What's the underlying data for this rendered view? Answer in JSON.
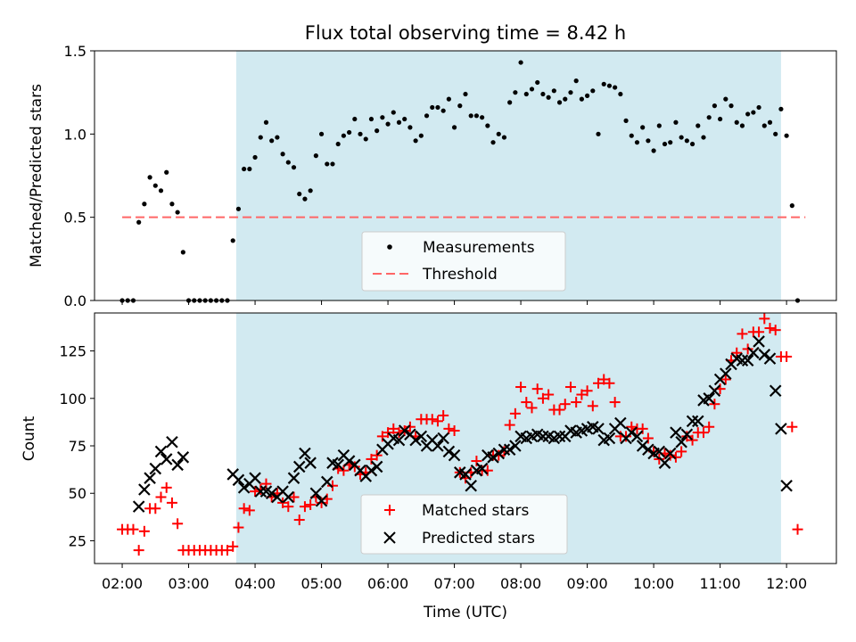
{
  "colors": {
    "shade": "#add8e6",
    "threshold": "#ff6666",
    "matched": "#ff0000",
    "predicted": "#000000",
    "measurements": "#000000"
  },
  "chart_data": [
    {
      "type": "scatter",
      "title": "Flux total observing time = 8.42 h",
      "xlabel": "",
      "ylabel": "Matched/Predicted stars",
      "xlim": [
        "01:35",
        "12:45"
      ],
      "ylim": [
        0,
        1.5
      ],
      "yticks": [
        "0.0",
        "0.5",
        "1.0",
        "1.5"
      ],
      "grid": false,
      "legend_position": "lower-center",
      "shaded_region": {
        "start": "03:43",
        "end": "11:55"
      },
      "threshold": {
        "name": "Threshold",
        "value": 0.5,
        "x_start": "02:00",
        "x_end": "12:17",
        "style": "dashed"
      },
      "series": [
        {
          "name": "Measurements",
          "marker": "dot",
          "x": [
            "02:00",
            "02:05",
            "02:10",
            "02:15",
            "02:20",
            "02:25",
            "02:30",
            "02:35",
            "02:40",
            "02:45",
            "02:50",
            "02:55",
            "03:00",
            "03:05",
            "03:10",
            "03:15",
            "03:20",
            "03:25",
            "03:30",
            "03:35",
            "03:40",
            "03:45",
            "03:50",
            "03:55",
            "04:00",
            "04:05",
            "04:10",
            "04:15",
            "04:20",
            "04:25",
            "04:30",
            "04:35",
            "04:40",
            "04:45",
            "04:50",
            "04:55",
            "05:00",
            "05:05",
            "05:10",
            "05:15",
            "05:20",
            "05:25",
            "05:30",
            "05:35",
            "05:40",
            "05:45",
            "05:50",
            "05:55",
            "06:00",
            "06:05",
            "06:10",
            "06:15",
            "06:20",
            "06:25",
            "06:30",
            "06:35",
            "06:40",
            "06:45",
            "06:50",
            "06:55",
            "07:00",
            "07:05",
            "07:10",
            "07:15",
            "07:20",
            "07:25",
            "07:30",
            "07:35",
            "07:40",
            "07:45",
            "07:50",
            "07:55",
            "08:00",
            "08:05",
            "08:10",
            "08:15",
            "08:20",
            "08:25",
            "08:30",
            "08:35",
            "08:40",
            "08:45",
            "08:50",
            "08:55",
            "09:00",
            "09:05",
            "09:10",
            "09:15",
            "09:20",
            "09:25",
            "09:30",
            "09:35",
            "09:40",
            "09:45",
            "09:50",
            "09:55",
            "10:00",
            "10:05",
            "10:10",
            "10:15",
            "10:20",
            "10:25",
            "10:30",
            "10:35",
            "10:40",
            "10:45",
            "10:50",
            "10:55",
            "11:00",
            "11:05",
            "11:10",
            "11:15",
            "11:20",
            "11:25",
            "11:30",
            "11:35",
            "11:40",
            "11:45",
            "11:50",
            "11:55",
            "12:00",
            "12:05",
            "12:10"
          ],
          "values": [
            0.0,
            0.0,
            0.0,
            0.47,
            0.58,
            0.74,
            0.69,
            0.66,
            0.77,
            0.58,
            0.53,
            0.29,
            0.0,
            0.0,
            0.0,
            0.0,
            0.0,
            0.0,
            0.0,
            0.0,
            0.36,
            0.55,
            0.79,
            0.79,
            0.86,
            0.98,
            1.07,
            0.96,
            0.98,
            0.88,
            0.83,
            0.8,
            0.64,
            0.61,
            0.66,
            0.87,
            1.0,
            0.82,
            0.82,
            0.94,
            0.99,
            1.01,
            1.09,
            1.0,
            0.97,
            1.09,
            1.02,
            1.1,
            1.06,
            1.13,
            1.07,
            1.09,
            1.04,
            0.96,
            0.99,
            1.11,
            1.16,
            1.16,
            1.14,
            1.21,
            1.04,
            1.17,
            1.24,
            1.11,
            1.11,
            1.1,
            1.05,
            0.95,
            1.0,
            0.98,
            1.19,
            1.25,
            1.43,
            1.24,
            1.27,
            1.31,
            1.24,
            1.22,
            1.26,
            1.19,
            1.21,
            1.25,
            1.32,
            1.21,
            1.23,
            1.26,
            1.0,
            1.3,
            1.29,
            1.28,
            1.24,
            1.08,
            0.99,
            0.95,
            1.04,
            0.96,
            0.9,
            1.05,
            0.94,
            0.95,
            1.07,
            0.98,
            0.96,
            0.94,
            1.05,
            0.98,
            1.1,
            1.17,
            1.09,
            1.21,
            1.17,
            1.07,
            1.05,
            1.12,
            1.13,
            1.16,
            1.05,
            1.07,
            1.0,
            1.15,
            0.99,
            0.57,
            0.0
          ]
        }
      ]
    },
    {
      "type": "scatter",
      "title": "",
      "xlabel": "Time (UTC)",
      "ylabel": "Count",
      "xlim": [
        "01:35",
        "12:45"
      ],
      "ylim": [
        13,
        145
      ],
      "yticks": [
        "25",
        "50",
        "75",
        "100",
        "125"
      ],
      "xticks": [
        "02:00",
        "03:00",
        "04:00",
        "05:00",
        "06:00",
        "07:00",
        "08:00",
        "09:00",
        "10:00",
        "11:00",
        "12:00"
      ],
      "grid": false,
      "legend_position": "lower-center",
      "shaded_region": {
        "start": "03:43",
        "end": "11:55"
      },
      "x": [
        "02:00",
        "02:05",
        "02:10",
        "02:15",
        "02:20",
        "02:25",
        "02:30",
        "02:35",
        "02:40",
        "02:45",
        "02:50",
        "02:55",
        "03:00",
        "03:05",
        "03:10",
        "03:15",
        "03:20",
        "03:25",
        "03:30",
        "03:35",
        "03:40",
        "03:45",
        "03:50",
        "03:55",
        "04:00",
        "04:05",
        "04:10",
        "04:15",
        "04:20",
        "04:25",
        "04:30",
        "04:35",
        "04:40",
        "04:45",
        "04:50",
        "04:55",
        "05:00",
        "05:05",
        "05:10",
        "05:15",
        "05:20",
        "05:25",
        "05:30",
        "05:35",
        "05:40",
        "05:45",
        "05:50",
        "05:55",
        "06:00",
        "06:05",
        "06:10",
        "06:15",
        "06:20",
        "06:25",
        "06:30",
        "06:35",
        "06:40",
        "06:45",
        "06:50",
        "06:55",
        "07:00",
        "07:05",
        "07:10",
        "07:15",
        "07:20",
        "07:25",
        "07:30",
        "07:35",
        "07:40",
        "07:45",
        "07:50",
        "07:55",
        "08:00",
        "08:05",
        "08:10",
        "08:15",
        "08:20",
        "08:25",
        "08:30",
        "08:35",
        "08:40",
        "08:45",
        "08:50",
        "08:55",
        "09:00",
        "09:05",
        "09:10",
        "09:15",
        "09:20",
        "09:25",
        "09:30",
        "09:35",
        "09:40",
        "09:45",
        "09:50",
        "09:55",
        "10:00",
        "10:05",
        "10:10",
        "10:15",
        "10:20",
        "10:25",
        "10:30",
        "10:35",
        "10:40",
        "10:45",
        "10:50",
        "10:55",
        "11:00",
        "11:05",
        "11:10",
        "11:15",
        "11:20",
        "11:25",
        "11:30",
        "11:35",
        "11:40",
        "11:45",
        "11:50",
        "11:55",
        "12:00",
        "12:05",
        "12:10"
      ],
      "series": [
        {
          "name": "Matched stars",
          "marker": "plus",
          "values": [
            31,
            31,
            31,
            20,
            30,
            42,
            42,
            48,
            53,
            45,
            34,
            20,
            20,
            20,
            20,
            20,
            20,
            20,
            20,
            20,
            22,
            32,
            42,
            41,
            51,
            52,
            55,
            48,
            50,
            45,
            43,
            48,
            36,
            43,
            44,
            48,
            45,
            47,
            54,
            63,
            62,
            65,
            64,
            60,
            61,
            68,
            70,
            80,
            82,
            84,
            82,
            83,
            85,
            80,
            89,
            89,
            89,
            88,
            91,
            84,
            83,
            61,
            58,
            61,
            67,
            62,
            62,
            70,
            70,
            72,
            86,
            92,
            106,
            98,
            95,
            105,
            100,
            102,
            94,
            94,
            97,
            106,
            98,
            102,
            104,
            96,
            108,
            110,
            108,
            98,
            80,
            80,
            85,
            84,
            84,
            79,
            72,
            68,
            71,
            70,
            69,
            72,
            80,
            78,
            82,
            82,
            85,
            97,
            105,
            110,
            120,
            124,
            134,
            126,
            135,
            135,
            142,
            137,
            136,
            122,
            122,
            85,
            31
          ]
        },
        {
          "name": "Predicted stars",
          "marker": "x",
          "values": [
            null,
            null,
            null,
            43,
            52,
            58,
            63,
            72,
            68,
            77,
            65,
            69,
            null,
            null,
            null,
            null,
            null,
            null,
            null,
            null,
            60,
            57,
            53,
            55,
            58,
            51,
            51,
            50,
            48,
            51,
            48,
            58,
            64,
            71,
            66,
            50,
            46,
            56,
            66,
            65,
            70,
            67,
            65,
            62,
            59,
            62,
            64,
            73,
            76,
            79,
            78,
            83,
            81,
            78,
            80,
            75,
            78,
            75,
            79,
            72,
            70,
            61,
            60,
            54,
            62,
            63,
            70,
            69,
            71,
            73,
            73,
            75,
            80,
            79,
            80,
            81,
            80,
            80,
            79,
            80,
            80,
            83,
            82,
            83,
            84,
            85,
            84,
            78,
            79,
            84,
            87,
            79,
            82,
            80,
            75,
            73,
            71,
            72,
            66,
            71,
            82,
            77,
            81,
            88,
            88,
            99,
            100,
            104,
            110,
            113,
            118,
            121,
            120,
            120,
            124,
            130,
            123,
            121,
            104,
            84,
            54
          ]
        }
      ]
    }
  ]
}
